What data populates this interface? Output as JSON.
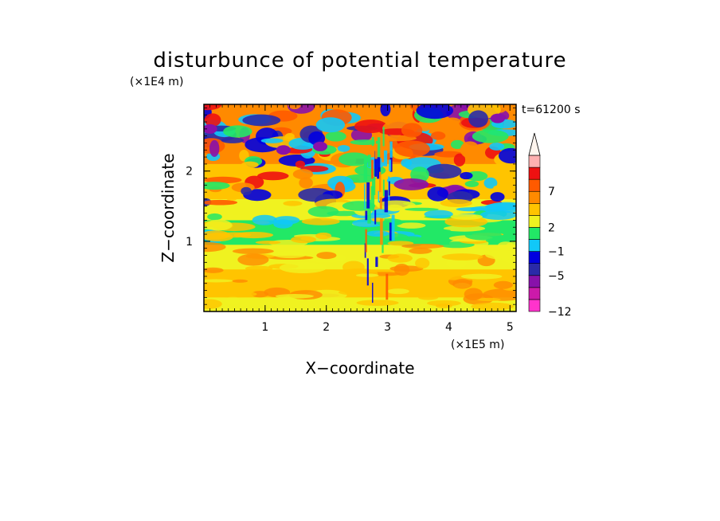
{
  "chart_data": {
    "type": "heatmap",
    "title": "disturbunce of potential temperature",
    "time_label": "t=61200 s",
    "xlabel": "X−coordinate",
    "ylabel": "Z−coordinate",
    "x_unit": "(×1E5 m)",
    "y_unit": "(×1E4 m)",
    "xlim": [
      0,
      5.1
    ],
    "ylim": [
      0,
      2.95
    ],
    "x_ticks": [
      {
        "value": 1,
        "label": "1"
      },
      {
        "value": 2,
        "label": "2"
      },
      {
        "value": 3,
        "label": "3"
      },
      {
        "value": 4,
        "label": "4"
      },
      {
        "value": 5,
        "label": "5"
      }
    ],
    "y_ticks": [
      {
        "value": 1,
        "label": "1"
      },
      {
        "value": 2,
        "label": "2"
      }
    ],
    "colorbar": {
      "levels": [
        {
          "color": "#ff33cc",
          "label": "−12"
        },
        {
          "color": "#cc1aaa",
          "label": ""
        },
        {
          "color": "#8811aa",
          "label": ""
        },
        {
          "color": "#2a2aa8",
          "label": "−5"
        },
        {
          "color": "#0000e0",
          "label": ""
        },
        {
          "color": "#11c8f8",
          "label": "−1"
        },
        {
          "color": "#22e866",
          "label": ""
        },
        {
          "color": "#f0f220",
          "label": "2"
        },
        {
          "color": "#ffc400",
          "label": ""
        },
        {
          "color": "#ff8a00",
          "label": ""
        },
        {
          "color": "#ff5a00",
          "label": "7"
        },
        {
          "color": "#ee1111",
          "label": ""
        },
        {
          "color": "#ffb0b0",
          "label": ""
        }
      ],
      "arrow_color": "#fff5ee"
    },
    "bands": [
      {
        "z_range": [
          0.0,
          0.2
        ],
        "dominant": "#f0f220",
        "note": "surface yellow"
      },
      {
        "z_range": [
          0.2,
          0.6
        ],
        "dominant": "#ffc400",
        "note": "light orange"
      },
      {
        "z_range": [
          0.6,
          0.95
        ],
        "dominant": "#f0f220",
        "note": "yellow"
      },
      {
        "z_range": [
          0.95,
          1.3
        ],
        "dominant": "#22e866",
        "note": "green"
      },
      {
        "z_range": [
          1.3,
          1.6
        ],
        "dominant": "#f0f220",
        "note": "yellow/green mix"
      },
      {
        "z_range": [
          1.6,
          2.1
        ],
        "dominant": "#ffc400",
        "note": "orange with blue patches"
      },
      {
        "z_range": [
          2.1,
          2.95
        ],
        "dominant": "#ff8a00",
        "note": "orange/red with blue patches"
      }
    ]
  }
}
